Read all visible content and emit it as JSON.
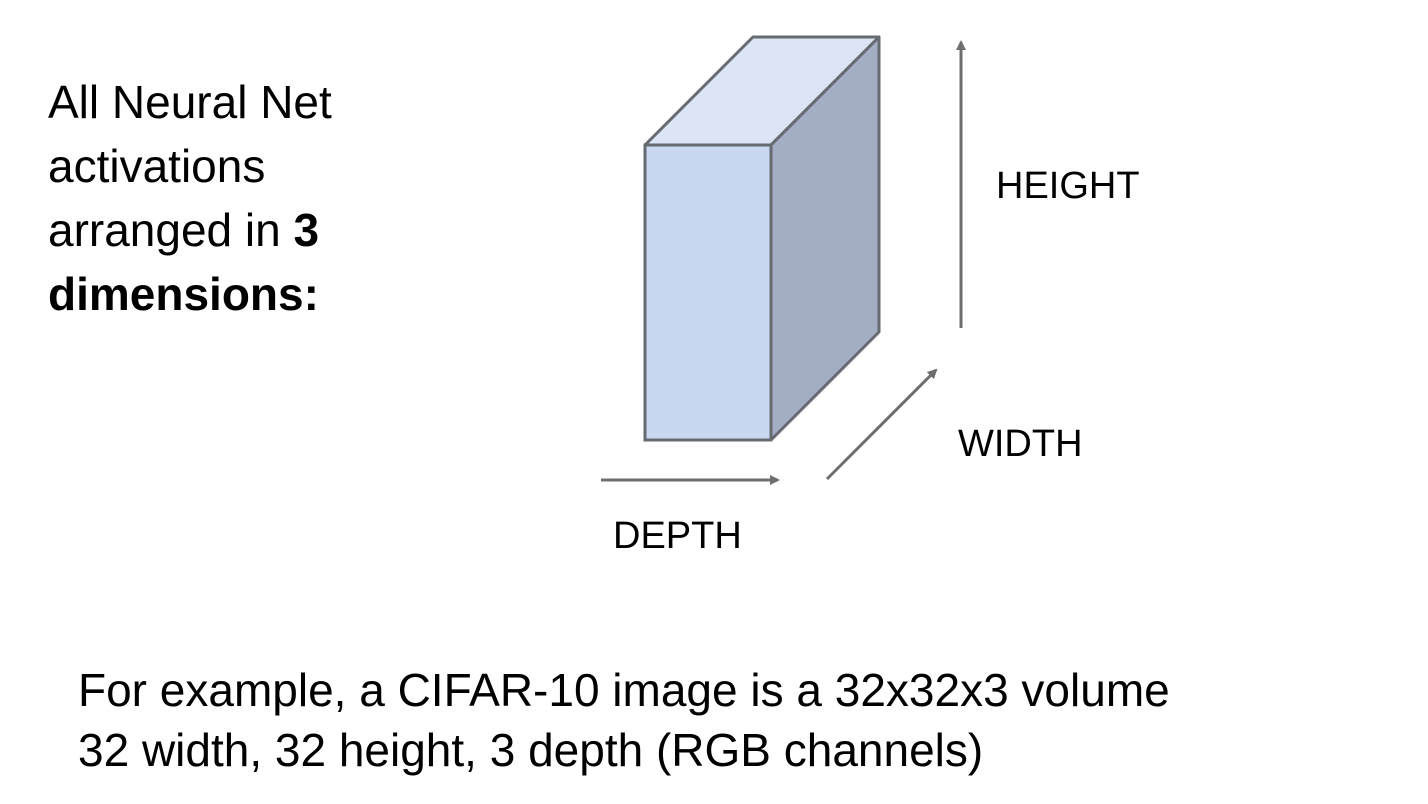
{
  "heading": {
    "line1": "All Neural Net",
    "line2": "activations",
    "line3_prefix": "arranged in ",
    "line3_bold": "3",
    "line4_bold": "dimensions:"
  },
  "diagram": {
    "labels": {
      "height": "HEIGHT",
      "width": "WIDTH",
      "depth": "DEPTH"
    },
    "colors": {
      "front_face": "#c9d7f0",
      "top_face": "#dce5f6",
      "side_face": "#a3adc3",
      "outline": "#666b72",
      "arrow": "#6e6e6e"
    }
  },
  "caption": {
    "line1": "For example, a CIFAR-10 image is a 32x32x3 volume",
    "line2": "32 width, 32 height, 3 depth (RGB channels)"
  }
}
